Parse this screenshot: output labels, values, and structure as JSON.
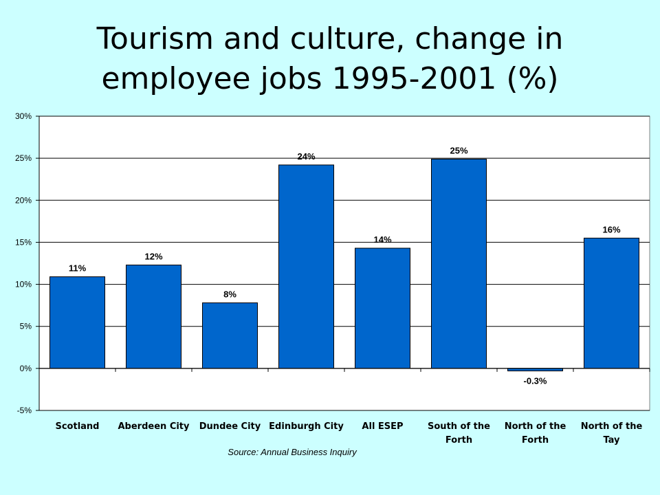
{
  "title_lines": [
    "Tourism and culture, change in",
    "employee jobs 1995-2001 (%)"
  ],
  "colors": {
    "background": "#ccffff",
    "plot_area": "#ffffff",
    "bar_fill": "#0066cc",
    "bar_stroke": "#000000"
  },
  "chart_data": {
    "type": "bar",
    "title": "Tourism and culture, change in employee jobs 1995-2001 (%)",
    "xlabel": "",
    "ylabel": "",
    "categories": [
      [
        "Scotland"
      ],
      [
        "Aberdeen City"
      ],
      [
        "Dundee City"
      ],
      [
        "Edinburgh City"
      ],
      [
        "All ESEP"
      ],
      [
        "South of the",
        "Forth"
      ],
      [
        "North of the",
        "Forth"
      ],
      [
        "North of the",
        "Tay"
      ]
    ],
    "values": [
      10.9,
      12.3,
      7.8,
      24.2,
      14.3,
      24.9,
      -0.3,
      15.5
    ],
    "data_labels": [
      "11%",
      "12%",
      "8%",
      "24%",
      "14%",
      "25%",
      "-0.3%",
      "16%"
    ],
    "ylim": [
      -5,
      30
    ],
    "yticks": [
      -5,
      0,
      5,
      10,
      15,
      20,
      25,
      30
    ],
    "ytick_labels": [
      "-5%",
      "0%",
      "5%",
      "10%",
      "15%",
      "20%",
      "25%",
      "30%"
    ],
    "grid": true,
    "legend": "none",
    "source_note": "Source: Annual Business Inquiry"
  }
}
